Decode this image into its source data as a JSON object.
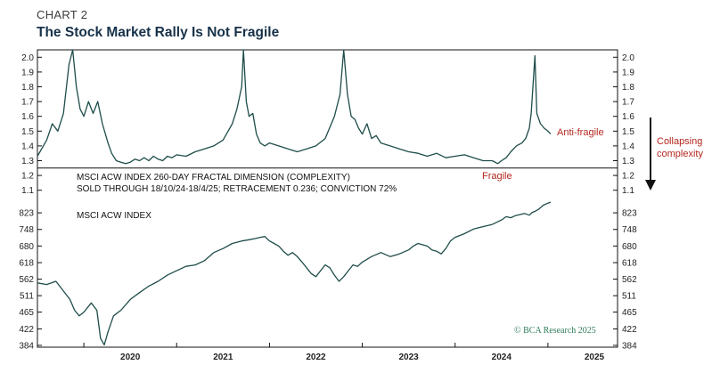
{
  "header": {
    "label": "CHART 2",
    "title": "The Stock Market Rally Is Not Fragile"
  },
  "colors": {
    "line": "#1e4d4a",
    "annotation": "#b3261e",
    "credit": "#2f7d5a",
    "title": "#17324a"
  },
  "annotations": {
    "anti_fragile": "Anti-fragile",
    "fragile": "Fragile",
    "collapsing_1": "Collapsing",
    "collapsing_2": "complexity",
    "credit": "© BCA Research 2025"
  },
  "chart_data": [
    {
      "type": "line",
      "title": "MSCI ACW INDEX 260-DAY FRACTAL DIMENSION (COMPLEXITY)",
      "subtitle": "SOLD THROUGH 18/10/24-18/4/25; RETRACEMENT 0.236; CONVICTION 72%",
      "ylim": [
        1.05,
        2.05
      ],
      "yticks": [
        "2.0",
        "1.9",
        "1.8",
        "1.7",
        "1.6",
        "1.5",
        "1.4",
        "1.3",
        "1.2",
        "1.1"
      ],
      "reference_line": 1.25,
      "series": [
        {
          "x": [
            2019.5,
            2019.6,
            2019.66,
            2019.72,
            2019.78,
            2019.84,
            2019.88,
            2019.92,
            2019.96,
            2020.0,
            2020.05,
            2020.1,
            2020.15,
            2020.2,
            2020.26,
            2020.3,
            2020.35,
            2020.4,
            2020.45,
            2020.5,
            2020.55,
            2020.6,
            2020.65,
            2020.7,
            2020.75,
            2020.8,
            2020.85,
            2020.9,
            2020.95,
            2021.0,
            2021.1,
            2021.2,
            2021.3,
            2021.4,
            2021.5,
            2021.6,
            2021.65,
            2021.7,
            2021.72,
            2021.75,
            2021.78,
            2021.82,
            2021.86,
            2021.9,
            2021.95,
            2022.0,
            2022.1,
            2022.2,
            2022.3,
            2022.4,
            2022.5,
            2022.6,
            2022.7,
            2022.76,
            2022.8,
            2022.84,
            2022.88,
            2022.92,
            2022.96,
            2023.0,
            2023.05,
            2023.1,
            2023.15,
            2023.2,
            2023.3,
            2023.4,
            2023.5,
            2023.6,
            2023.7,
            2023.8,
            2023.9,
            2024.0,
            2024.1,
            2024.2,
            2024.3,
            2024.4,
            2024.46,
            2024.5,
            2024.55,
            2024.6,
            2024.66,
            2024.72,
            2024.76,
            2024.8,
            2024.82,
            2024.86,
            2024.88,
            2024.92,
            2024.96,
            2025.0,
            2025.03
          ],
          "values": [
            1.33,
            1.44,
            1.55,
            1.5,
            1.62,
            1.95,
            2.05,
            1.8,
            1.65,
            1.6,
            1.7,
            1.62,
            1.7,
            1.55,
            1.42,
            1.35,
            1.3,
            1.29,
            1.28,
            1.29,
            1.31,
            1.3,
            1.32,
            1.3,
            1.33,
            1.31,
            1.3,
            1.33,
            1.32,
            1.34,
            1.33,
            1.36,
            1.38,
            1.4,
            1.44,
            1.55,
            1.65,
            1.8,
            2.05,
            1.7,
            1.6,
            1.62,
            1.48,
            1.42,
            1.4,
            1.42,
            1.4,
            1.38,
            1.36,
            1.38,
            1.4,
            1.45,
            1.6,
            1.75,
            2.05,
            1.75,
            1.6,
            1.58,
            1.52,
            1.48,
            1.55,
            1.45,
            1.47,
            1.42,
            1.4,
            1.38,
            1.36,
            1.35,
            1.33,
            1.35,
            1.32,
            1.33,
            1.34,
            1.32,
            1.3,
            1.3,
            1.28,
            1.3,
            1.32,
            1.36,
            1.4,
            1.42,
            1.45,
            1.52,
            1.62,
            2.01,
            1.62,
            1.55,
            1.52,
            1.5,
            1.48
          ]
        }
      ]
    },
    {
      "type": "line",
      "title": "MSCI ACW INDEX",
      "ylim": [
        380,
        880
      ],
      "yticks": [
        "823",
        "748",
        "680",
        "618",
        "562",
        "511",
        "465",
        "422",
        "384"
      ],
      "xticks": [
        "2020",
        "2021",
        "2022",
        "2023",
        "2024",
        "2025"
      ],
      "series": [
        {
          "x": [
            2019.5,
            2019.6,
            2019.7,
            2019.78,
            2019.85,
            2019.9,
            2019.95,
            2020.0,
            2020.08,
            2020.14,
            2020.18,
            2020.22,
            2020.26,
            2020.32,
            2020.4,
            2020.5,
            2020.6,
            2020.7,
            2020.8,
            2020.9,
            2021.0,
            2021.1,
            2021.2,
            2021.3,
            2021.4,
            2021.5,
            2021.6,
            2021.7,
            2021.78,
            2021.85,
            2021.9,
            2021.95,
            2022.0,
            2022.05,
            2022.1,
            2022.15,
            2022.2,
            2022.25,
            2022.3,
            2022.35,
            2022.4,
            2022.45,
            2022.5,
            2022.55,
            2022.6,
            2022.65,
            2022.7,
            2022.75,
            2022.8,
            2022.85,
            2022.9,
            2022.95,
            2023.0,
            2023.1,
            2023.2,
            2023.3,
            2023.4,
            2023.5,
            2023.55,
            2023.6,
            2023.7,
            2023.75,
            2023.8,
            2023.85,
            2023.9,
            2023.95,
            2024.0,
            2024.1,
            2024.2,
            2024.25,
            2024.3,
            2024.4,
            2024.5,
            2024.55,
            2024.6,
            2024.65,
            2024.7,
            2024.75,
            2024.8,
            2024.83,
            2024.86,
            2024.9,
            2024.95,
            2025.0,
            2025.03
          ],
          "values": [
            550,
            545,
            555,
            525,
            500,
            470,
            455,
            465,
            490,
            470,
            400,
            385,
            415,
            455,
            470,
            500,
            520,
            540,
            555,
            575,
            590,
            605,
            610,
            625,
            655,
            670,
            690,
            700,
            705,
            710,
            715,
            718,
            700,
            690,
            680,
            660,
            645,
            655,
            640,
            620,
            600,
            580,
            570,
            590,
            610,
            600,
            575,
            555,
            570,
            590,
            610,
            605,
            620,
            640,
            655,
            640,
            650,
            665,
            680,
            690,
            680,
            665,
            660,
            650,
            670,
            700,
            715,
            730,
            750,
            755,
            760,
            770,
            790,
            805,
            800,
            810,
            815,
            820,
            812,
            825,
            830,
            840,
            860,
            870,
            875
          ]
        }
      ]
    }
  ]
}
